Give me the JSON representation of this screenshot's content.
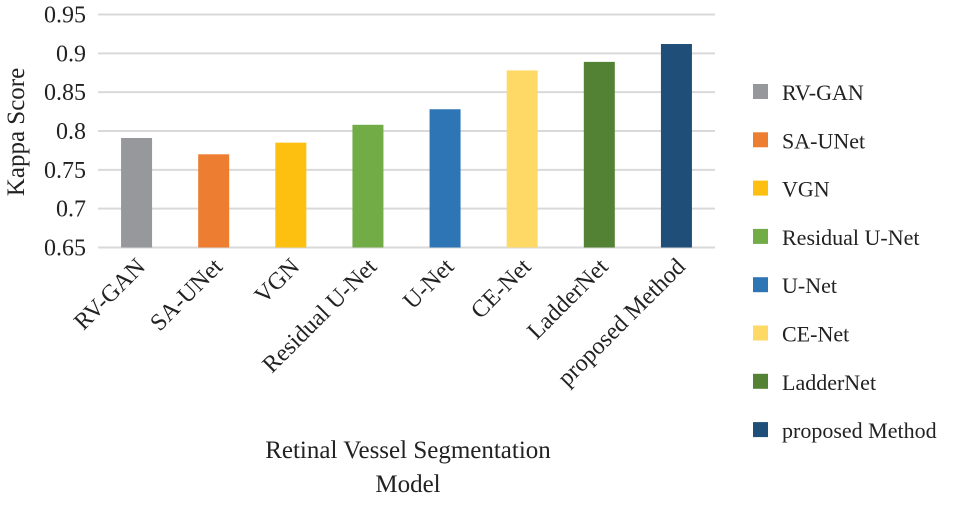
{
  "chart_data": {
    "type": "bar",
    "title": "",
    "xlabel": "Retinal Vessel Segmentation Model",
    "xlabel_lines": [
      "Retinal Vessel Segmentation",
      "Model"
    ],
    "ylabel": "Kappa Score",
    "ylim": [
      0.65,
      0.95
    ],
    "yticks": [
      "0.65",
      "0.7",
      "0.75",
      "0.8",
      "0.85",
      "0.9",
      "0.95"
    ],
    "grid": true,
    "legend_placement": "right",
    "categories": [
      "RV-GAN",
      "SA-UNet",
      "VGN",
      "Residual U-Net",
      "U-Net",
      "CE-Net",
      "LadderNet",
      "proposed Method"
    ],
    "values": [
      0.791,
      0.77,
      0.785,
      0.808,
      0.828,
      0.878,
      0.889,
      0.912
    ],
    "colors": [
      "#97989b",
      "#ed7d31",
      "#fdc010",
      "#71ac47",
      "#2e75b6",
      "#ffd966",
      "#548235",
      "#1f4e79"
    ]
  }
}
